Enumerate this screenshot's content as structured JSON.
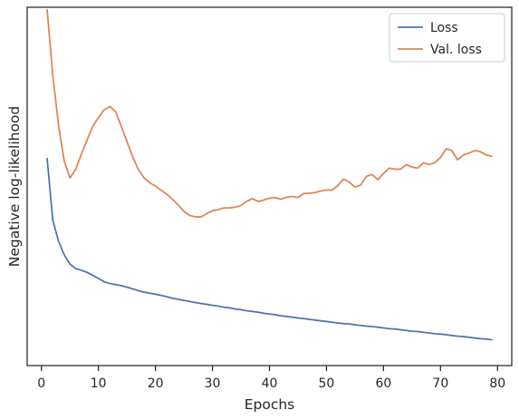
{
  "chart_data": {
    "type": "line",
    "title": "",
    "xlabel": "Epochs",
    "ylabel": "Negative log-likelihood",
    "xlim": [
      -2.5,
      82.5
    ],
    "ylim": [
      0,
      100
    ],
    "xticks": [
      0,
      10,
      20,
      30,
      40,
      50,
      60,
      70,
      80
    ],
    "yticks_visible": false,
    "grid": false,
    "legend_position": "top-right",
    "series": [
      {
        "name": "Loss",
        "color": "#4c72b0",
        "x": [
          1,
          2,
          3,
          4,
          5,
          6,
          7,
          8,
          9,
          10,
          11,
          12,
          13,
          14,
          15,
          16,
          17,
          18,
          19,
          20,
          21,
          22,
          23,
          24,
          25,
          26,
          27,
          28,
          29,
          30,
          31,
          32,
          33,
          34,
          35,
          36,
          37,
          38,
          39,
          40,
          41,
          42,
          43,
          44,
          45,
          46,
          47,
          48,
          49,
          50,
          51,
          52,
          53,
          54,
          55,
          56,
          57,
          58,
          59,
          60,
          61,
          62,
          63,
          64,
          65,
          66,
          67,
          68,
          69,
          70,
          71,
          72,
          73,
          74,
          75,
          76,
          77,
          78,
          79
        ],
        "values": [
          57.8,
          40.5,
          34.7,
          30.9,
          28.3,
          27.1,
          26.6,
          26.0,
          25.2,
          24.3,
          23.4,
          22.9,
          22.6,
          22.3,
          21.9,
          21.4,
          20.9,
          20.5,
          20.2,
          19.9,
          19.6,
          19.2,
          18.8,
          18.5,
          18.2,
          17.9,
          17.6,
          17.3,
          17.1,
          16.8,
          16.6,
          16.3,
          16.1,
          15.8,
          15.6,
          15.3,
          15.1,
          14.9,
          14.6,
          14.4,
          14.2,
          13.9,
          13.7,
          13.5,
          13.3,
          13.1,
          12.9,
          12.7,
          12.5,
          12.3,
          12.1,
          11.9,
          11.7,
          11.6,
          11.4,
          11.2,
          11.0,
          10.9,
          10.7,
          10.5,
          10.3,
          10.2,
          10.0,
          9.8,
          9.6,
          9.5,
          9.3,
          9.1,
          8.9,
          8.8,
          8.6,
          8.4,
          8.2,
          8.1,
          7.9,
          7.7,
          7.5,
          7.4,
          7.2
        ]
      },
      {
        "name": "Val. loss",
        "color": "#dd8452",
        "x": [
          1,
          2,
          3,
          4,
          5,
          6,
          7,
          8,
          9,
          10,
          11,
          12,
          13,
          14,
          15,
          16,
          17,
          18,
          19,
          20,
          21,
          22,
          23,
          24,
          25,
          26,
          27,
          28,
          29,
          30,
          31,
          32,
          33,
          34,
          35,
          36,
          37,
          38,
          39,
          40,
          41,
          42,
          43,
          44,
          45,
          46,
          47,
          48,
          49,
          50,
          51,
          52,
          53,
          54,
          55,
          56,
          57,
          58,
          59,
          60,
          61,
          62,
          63,
          64,
          65,
          66,
          67,
          68,
          69,
          70,
          71,
          72,
          73,
          74,
          75,
          76,
          77,
          78,
          79
        ],
        "values": [
          99.3,
          80.9,
          67.1,
          57.1,
          52.4,
          54.7,
          59.0,
          62.9,
          66.8,
          69.2,
          71.4,
          72.3,
          70.9,
          66.8,
          62.5,
          58.3,
          54.7,
          52.4,
          51.0,
          50.1,
          48.9,
          47.8,
          46.4,
          44.8,
          43.0,
          41.9,
          41.5,
          41.5,
          42.4,
          43.2,
          43.5,
          44.0,
          44.0,
          44.2,
          44.7,
          45.8,
          46.6,
          45.8,
          46.2,
          46.7,
          46.9,
          46.4,
          47.0,
          47.2,
          46.9,
          48.0,
          48.1,
          48.3,
          48.7,
          49.0,
          49.0,
          50.2,
          52.1,
          51.2,
          49.8,
          50.4,
          52.8,
          53.3,
          51.9,
          53.6,
          55.1,
          54.8,
          54.8,
          56.1,
          55.4,
          55.1,
          56.6,
          56.1,
          56.6,
          58.1,
          60.5,
          60.0,
          57.4,
          58.8,
          59.3,
          60.0,
          59.7,
          58.8,
          58.4
        ]
      }
    ]
  }
}
